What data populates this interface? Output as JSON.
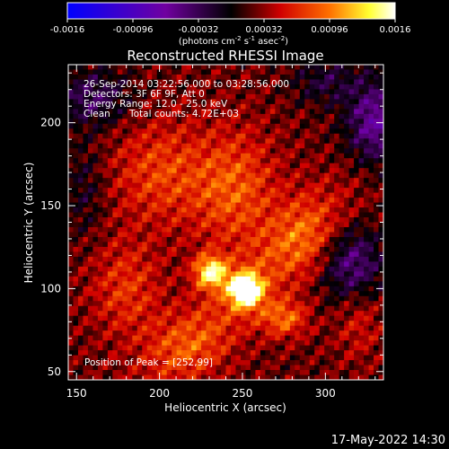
{
  "colorbar": {
    "ticks": [
      "-0.0016",
      "-0.00096",
      "-0.00032",
      "0.00032",
      "0.00096",
      "0.0016"
    ],
    "units_prefix": "(photons cm",
    "units_exp1": "-2",
    "units_mid": " s",
    "units_exp2": "-1",
    "units_mid2": " asec",
    "units_exp3": "-2",
    "units_suffix": ")"
  },
  "annotation": {
    "line1": "26-Sep-2014 03:22:56.000 to 03:28:56.000",
    "line2": "Detectors: 3F 6F 9F, Att 0",
    "line3": "Energy Range: 12.0 - 25.0 keV",
    "line4_a": "Clean",
    "line4_b": "Total counts: 4.72E+03",
    "peak": "Position of Peak = [252,99]"
  },
  "timestamp": "17-May-2022 14:30",
  "chart_data": {
    "type": "heatmap",
    "title": "Reconstructed RHESSI Image",
    "xlabel": "Heliocentric X (arcsec)",
    "ylabel": "Heliocentric Y (arcsec)",
    "xlim": [
      145,
      335
    ],
    "ylim": [
      45,
      235
    ],
    "xticks": [
      150,
      200,
      250,
      300
    ],
    "yticks": [
      50,
      100,
      150,
      200
    ],
    "xtick_labels": [
      "150",
      "200",
      "250",
      "300"
    ],
    "ytick_labels": [
      "50",
      "100",
      "150",
      "200"
    ],
    "zlim": [
      -0.0016,
      0.0016
    ],
    "colormap": "rhessi-signed (blue-purple-black-red-yellow-white)",
    "peak": [
      252,
      99
    ],
    "sources": [
      {
        "x": 252,
        "y": 99,
        "amp": 0.0016,
        "sx": 7,
        "sy": 7
      },
      {
        "x": 231,
        "y": 110,
        "amp": 0.0012,
        "sx": 7,
        "sy": 7
      },
      {
        "x": 275,
        "y": 82,
        "amp": 0.00065,
        "sx": 10,
        "sy": 8
      },
      {
        "x": 245,
        "y": 160,
        "amp": 0.0006,
        "sx": 18,
        "sy": 25
      },
      {
        "x": 290,
        "y": 130,
        "amp": 0.00045,
        "sx": 15,
        "sy": 18
      },
      {
        "x": 200,
        "y": 170,
        "amp": 0.0005,
        "sx": 20,
        "sy": 22
      },
      {
        "x": 180,
        "y": 100,
        "amp": 0.00045,
        "sx": 15,
        "sy": 20
      },
      {
        "x": 215,
        "y": 65,
        "amp": 0.00035,
        "sx": 18,
        "sy": 14
      },
      {
        "x": 320,
        "y": 80,
        "amp": 0.0003,
        "sx": 10,
        "sy": 16
      },
      {
        "x": 330,
        "y": 200,
        "amp": -0.00085,
        "sx": 12,
        "sy": 18
      },
      {
        "x": 315,
        "y": 115,
        "amp": -0.00075,
        "sx": 14,
        "sy": 16
      },
      {
        "x": 160,
        "y": 215,
        "amp": -0.00055,
        "sx": 16,
        "sy": 12
      },
      {
        "x": 155,
        "y": 160,
        "amp": -0.0003,
        "sx": 8,
        "sy": 20
      },
      {
        "x": 300,
        "y": 225,
        "amp": -0.0004,
        "sx": 14,
        "sy": 10
      }
    ]
  }
}
